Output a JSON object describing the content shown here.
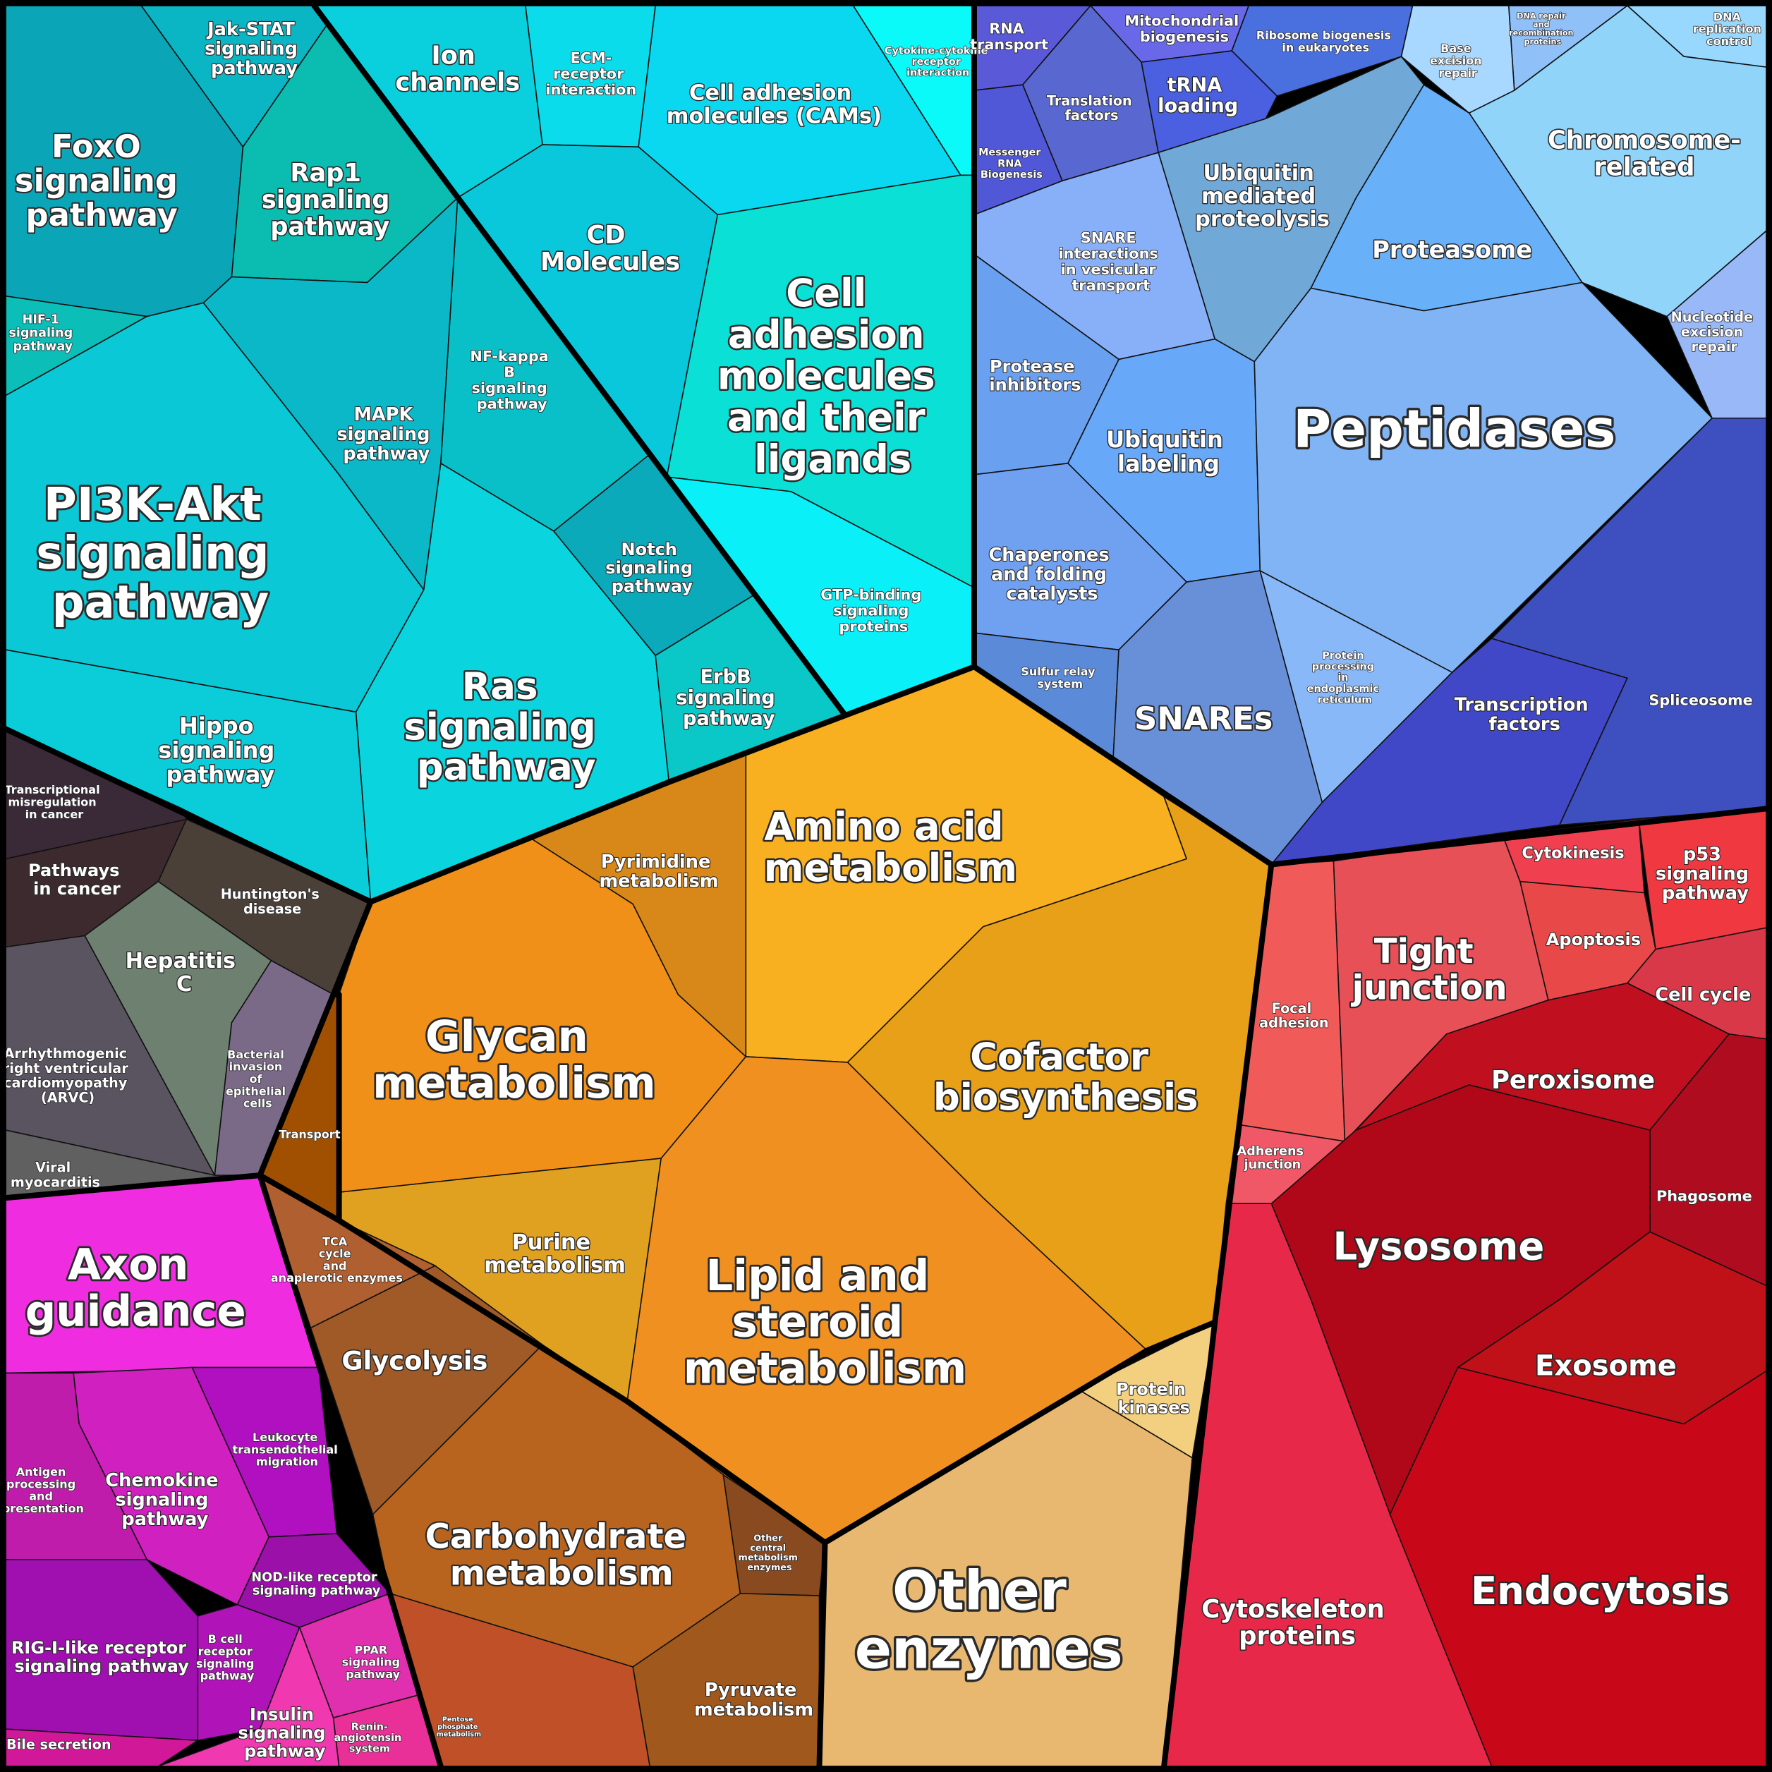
{
  "labels": [
    "FoxO signaling pathway",
    "Jak-STAT signaling pathway",
    "Rap1 signaling pathway",
    "HIF-1 signaling pathway",
    "NF-kappa B signaling pathway",
    "MAPK signaling pathway",
    "PI3K-Akt signaling pathway",
    "Hippo signaling pathway",
    "Ras signaling pathway",
    "Notch signaling pathway",
    "ErbB signaling pathway",
    "Ion channels",
    "ECM-receptor interaction",
    "Cytokine-cytokine receptor interaction",
    "Cell adhesion molecules (CAMs)",
    "CD Molecules",
    "Cell adhesion molecules and their ligands",
    "GTP-binding signaling proteins",
    "Transcriptional misregulation in cancer",
    "Pathways in cancer",
    "Huntington's disease",
    "Hepatitis C",
    "Arrhythmogenic right ventricular cardiomyopathy (ARVC)",
    "Bacterial invasion of epithelial cells",
    "Viral myocarditis",
    "Axon guidance",
    "Chemokine signaling pathway",
    "Leukocyte transendothelial migration",
    "Antigen processing and presentation",
    "NOD-like receptor signaling pathway",
    "RIG-I-like receptor signaling pathway",
    "B cell receptor signaling pathway",
    "PPAR signaling pathway",
    "Insulin signaling pathway",
    "Renin-angiotensin system",
    "Bile secretion",
    "Pyrimidine metabolism",
    "Amino acid metabolism",
    "Glycan metabolism",
    "Cofactor biosynthesis",
    "Transport",
    "Purine metabolism",
    "Lipid and steroid metabolism",
    "TCA cycle and anaplerotic enzymes",
    "Glycolysis",
    "Carbohydrate metabolism",
    "Other central metabolism enzymes",
    "Pyruvate metabolism",
    "Pentose phosphate metabolism",
    "Protein kinases",
    "Other enzymes",
    "RNA transport",
    "Mitochondrial biogenesis",
    "Ribosome biogenesis in eukaryotes",
    "DNA repair and recombination proteins",
    "DNA replication control",
    "Base excision repair",
    "Translation factors",
    "tRNA loading",
    "Messenger RNA Biogenesis",
    "Chromosome-related",
    "Ubiquitin mediated proteolysis",
    "Proteasome",
    "SNARE interactions in vesicular transport",
    "Nucleotide excision repair",
    "Protease inhibitors",
    "Ubiquitin labeling",
    "Peptidases",
    "Chaperones and folding catalysts",
    "Sulfur relay system",
    "SNAREs",
    "Protein processing in endoplasmic reticulum",
    "Transcription factors",
    "Spliceosome",
    "Cytokinesis",
    "p53 signaling pathway",
    "Apoptosis",
    "Tight junction",
    "Cell cycle",
    "Focal adhesion",
    "Peroxisome",
    "Adherens junction",
    "Phagosome",
    "Lysosome",
    "Exosome",
    "Cytoskeleton proteins",
    "Endocytosis"
  ]
}
